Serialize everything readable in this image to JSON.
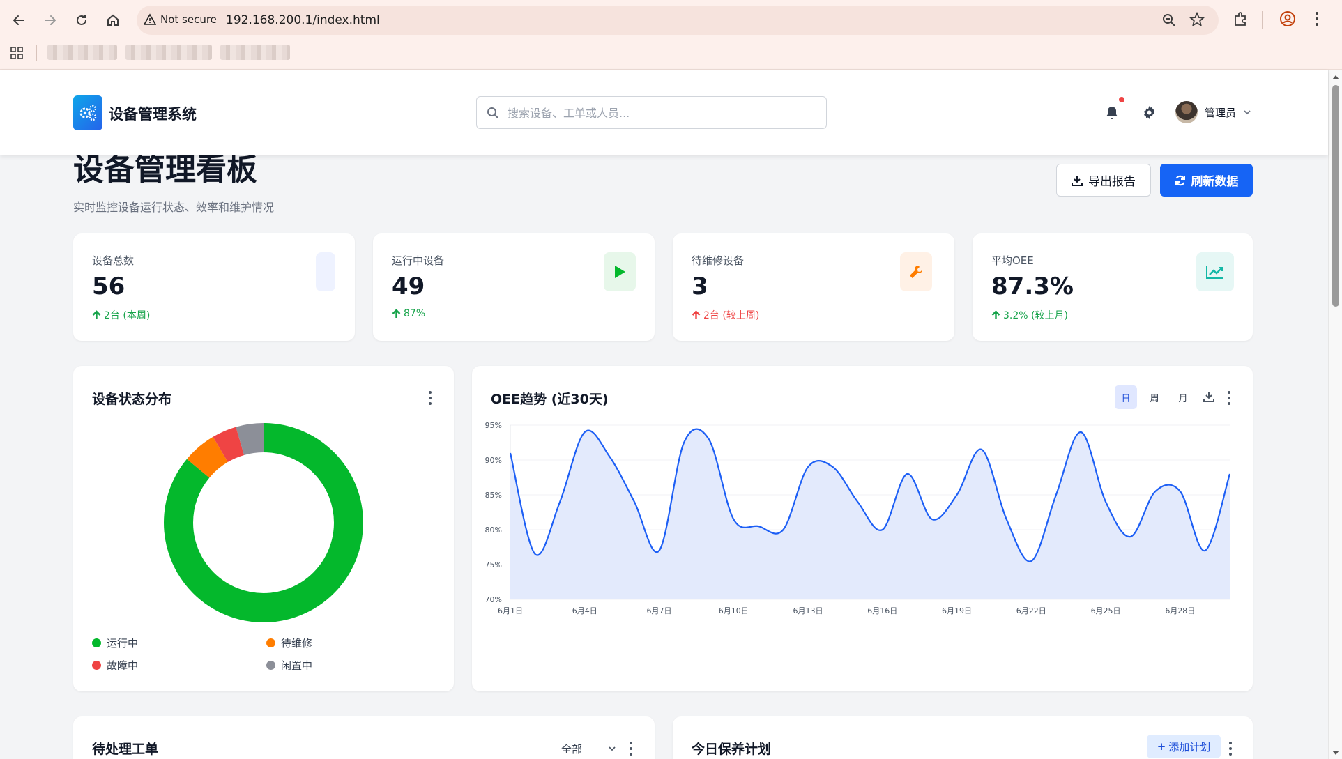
{
  "browser": {
    "security_label": "Not secure",
    "url": "192.168.200.1/index.html"
  },
  "header": {
    "app_name": "设备管理系统",
    "search_placeholder": "搜索设备、工单或人员...",
    "user_name": "管理员"
  },
  "page": {
    "title": "设备管理看板",
    "subtitle": "实时监控设备运行状态、效率和维护情况",
    "export_label": "导出报告",
    "refresh_label": "刷新数据"
  },
  "kpis": [
    {
      "label": "设备总数",
      "value": "56",
      "delta": "2台 (本周)",
      "trend": "up",
      "delta_color": "#16a34a",
      "icon": "blank-icon",
      "icon_bg": "#eef2ff"
    },
    {
      "label": "运行中设备",
      "value": "49",
      "delta": "87%",
      "trend": "up",
      "delta_color": "#16a34a",
      "icon": "play-icon",
      "icon_bg": "#e7f7ea"
    },
    {
      "label": "待维修设备",
      "value": "3",
      "delta": "2台 (较上周)",
      "trend": "up",
      "delta_color": "#ef4444",
      "icon": "wrench-icon",
      "icon_bg": "#fff1e6"
    },
    {
      "label": "平均OEE",
      "value": "87.3%",
      "delta": "3.2% (较上月)",
      "trend": "up",
      "delta_color": "#16a34a",
      "icon": "chart-line-icon",
      "icon_bg": "#e6f7f5"
    }
  ],
  "status_panel": {
    "title": "设备状态分布",
    "legend": [
      "运行中",
      "待维修",
      "故障中",
      "闲置中"
    ]
  },
  "oee_panel": {
    "title": "OEE趋势 (近30天)",
    "ranges": [
      "日",
      "周",
      "月"
    ],
    "active_range": "日"
  },
  "workorders_panel": {
    "title": "待处理工单",
    "filter_value": "全部"
  },
  "maintenance_panel": {
    "title": "今日保养计划",
    "add_label": "添加计划"
  },
  "chart_data": [
    {
      "type": "pie",
      "title": "设备状态分布",
      "categories": [
        "运行中",
        "待维修",
        "故障中",
        "闲置中"
      ],
      "values": [
        86,
        5.5,
        4,
        4.5
      ],
      "colors": [
        "#04b82c",
        "#ff7d00",
        "#ef4444",
        "#8c8f98"
      ]
    },
    {
      "type": "area",
      "title": "OEE趋势 (近30天)",
      "x": [
        "6月1日",
        "6月2日",
        "6月3日",
        "6月4日",
        "6月5日",
        "6月6日",
        "6月7日",
        "6月8日",
        "6月9日",
        "6月10日",
        "6月11日",
        "6月12日",
        "6月13日",
        "6月14日",
        "6月15日",
        "6月16日",
        "6月17日",
        "6月18日",
        "6月19日",
        "6月20日",
        "6月21日",
        "6月22日",
        "6月23日",
        "6月24日",
        "6月25日",
        "6月26日",
        "6月27日",
        "6月28日",
        "6月29日",
        "6月30日"
      ],
      "xticks": [
        "6月1日",
        "6月4日",
        "6月7日",
        "6月10日",
        "6月13日",
        "6月16日",
        "6月19日",
        "6月22日",
        "6月25日",
        "6月28日"
      ],
      "values": [
        91,
        76.5,
        84,
        94,
        90.5,
        84,
        77,
        92.5,
        93,
        81.5,
        80.5,
        80,
        89,
        89,
        84,
        80,
        88,
        81.5,
        85,
        91.5,
        81.5,
        75.5,
        85,
        94,
        84,
        79,
        85.5,
        85.5,
        77,
        88
      ],
      "yticks": [
        "70%",
        "75%",
        "80%",
        "85%",
        "90%",
        "95%"
      ],
      "ylim": [
        70,
        95
      ],
      "color": "#1d5ff5",
      "fill": "#e3eafc"
    }
  ]
}
